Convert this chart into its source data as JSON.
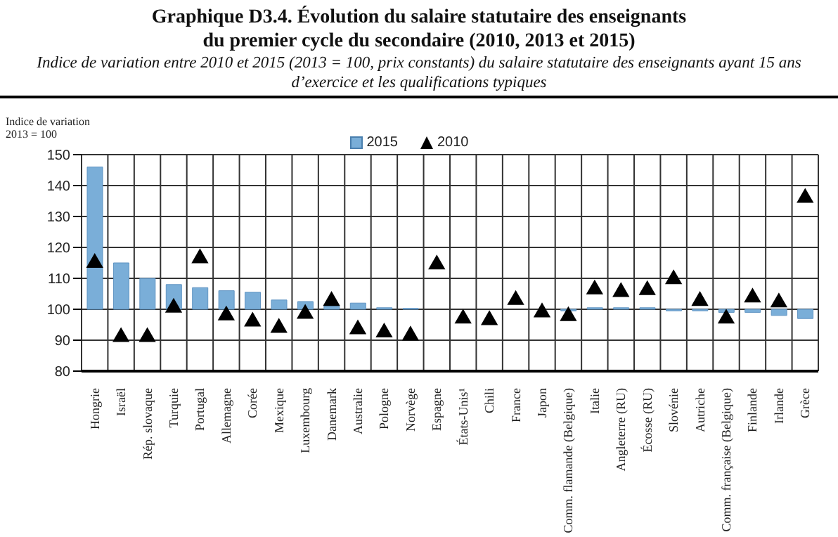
{
  "chart_data": {
    "type": "bar",
    "title": "Graphique D3.4.  Évolution du salaire statutaire des enseignants du premier cycle du secondaire (2010, 2013 et 2015)",
    "subtitle": "Indice de variation entre 2010 et 2015 (2013 = 100, prix constants) du salaire statutaire des enseignants ayant 15 ans d’exercice et les qualifications typiques",
    "ylabel": "Indice de variation 2013 = 100",
    "categories": [
      "Hongrie",
      "Israël",
      "Rép. slovaque",
      "Turquie",
      "Portugal",
      "Allemagne",
      "Corée",
      "Mexique",
      "Luxembourg",
      "Danemark",
      "Australie",
      "Pologne",
      "Norvège",
      "Espagne",
      "États-Unis¹",
      "Chili",
      "France",
      "Japon",
      "Comm. flamande (Belgique)",
      "Italie",
      "Angleterre (RU)",
      "Écosse (RU)",
      "Slovénie",
      "Autriche",
      "Comm. française (Belgique)",
      "Finlande",
      "Irlande",
      "Grèce"
    ],
    "series": [
      {
        "name": "2015",
        "color": "#7aaed8",
        "base": [
          100,
          100,
          100,
          100,
          100,
          100,
          100,
          100,
          100,
          100,
          100,
          100,
          100,
          null,
          null,
          null,
          null,
          null,
          100,
          100,
          100,
          100,
          100,
          100,
          100,
          100,
          100,
          100
        ],
        "values": [
          46,
          15,
          10,
          8,
          7,
          6,
          5.5,
          3,
          2.5,
          1,
          2,
          0.5,
          0.3,
          null,
          null,
          null,
          null,
          null,
          -0.5,
          0.5,
          0.5,
          0.5,
          -0.5,
          -0.5,
          -1,
          -1,
          -2,
          -3
        ]
      },
      {
        "name": "2010",
        "type": "scatter",
        "color": "#000000",
        "marker": "triangle",
        "values": [
          115,
          91,
          91,
          100.5,
          116.5,
          98,
          96,
          94,
          98.5,
          102.7,
          93.5,
          92.5,
          91.5,
          114.5,
          97,
          96.5,
          103,
          99,
          97.8,
          106.4,
          105.6,
          106.2,
          109.7,
          102.7,
          97,
          103.8,
          102.2,
          136
        ]
      }
    ],
    "ylim": [
      80,
      150
    ],
    "yticks": [
      80,
      90,
      100,
      110,
      120,
      130,
      140,
      150
    ],
    "grid": true,
    "legend": "top"
  }
}
